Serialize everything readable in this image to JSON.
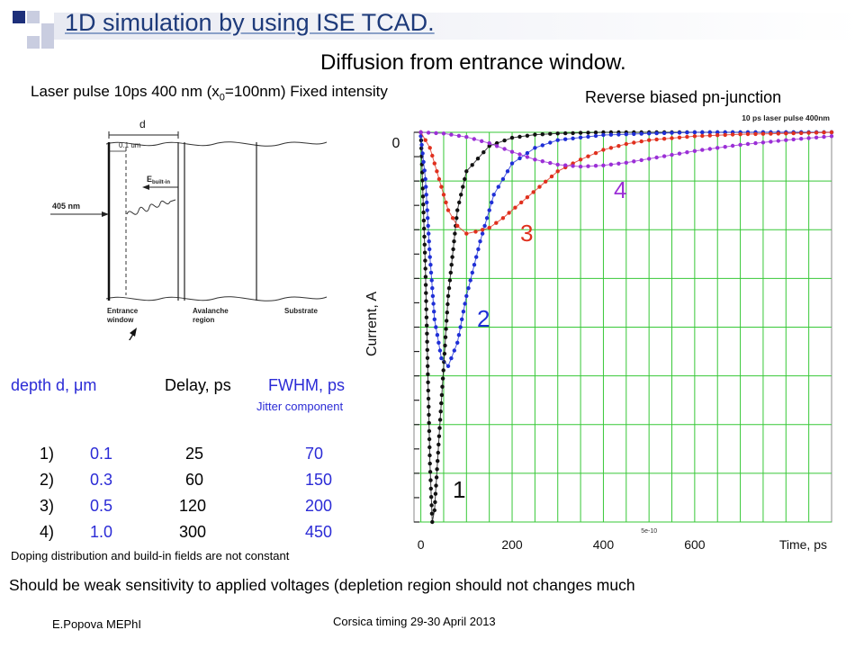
{
  "slide": {
    "title": "1D simulation by using ISE TCAD.",
    "subtitle": "Diffusion from entrance window.",
    "laser_note_pre": "Laser pulse 10ps 400 nm (x",
    "laser_note_sub": "0",
    "laser_note_post": "=100nm) Fixed intensity",
    "bias_note": "Reverse biased pn-junction",
    "doping_note": "Doping distribution and build-in fields are not constant",
    "sensitivity_note": "Should be weak sensitivity to applied voltages (depletion region should not changes much",
    "author": "E.Popova MEPhI",
    "event": "Corsica timing 29-30 April 2013"
  },
  "diagram": {
    "d_label": "d",
    "depth_label": "0.1 um",
    "field_label": "E",
    "field_sub": "built-in",
    "wavelength_label": "405 nm",
    "entrance_label_1": "Entrance",
    "entrance_label_2": "window",
    "avalanche_label_1": "Avalanche",
    "avalanche_label_2": "region",
    "substrate_label": "Substrate"
  },
  "table": {
    "headers": {
      "depth": "depth d, μm",
      "delay": "Delay, ps",
      "fwhm": "FWHM, ps",
      "fwhm_note": "Jitter component"
    },
    "rows": [
      {
        "index": "1)",
        "depth": "0.1",
        "delay": "25",
        "fwhm": "70"
      },
      {
        "index": "2)",
        "depth": "0.3",
        "delay": "60",
        "fwhm": "150"
      },
      {
        "index": "3)",
        "depth": "0.5",
        "delay": "120",
        "fwhm": "200"
      },
      {
        "index": "4)",
        "depth": "1.0",
        "delay": "300",
        "fwhm": "450"
      }
    ]
  },
  "chart_data": {
    "type": "line",
    "title": "10 ps laser pulse 400nm",
    "xlabel": "Time, ps",
    "ylabel": "Current, A",
    "x_ticks": [
      "0",
      "200",
      "400",
      "600"
    ],
    "x_extra_tick": "5e-10",
    "y_ticks": [
      "0"
    ],
    "xlim": [
      -15,
      900
    ],
    "ylim": [
      -1.0,
      0.0
    ],
    "grid": true,
    "series": [
      {
        "name": "1",
        "color": "#111111",
        "x": [
          0,
          10,
          20,
          25,
          30,
          40,
          60,
          80,
          100,
          150,
          200,
          250,
          300,
          400,
          500,
          600,
          700,
          800,
          900
        ],
        "y": [
          0,
          -0.35,
          -0.85,
          -1.0,
          -0.97,
          -0.78,
          -0.42,
          -0.2,
          -0.1,
          -0.035,
          -0.014,
          -0.006,
          -0.003,
          0,
          0,
          0,
          0,
          0,
          0
        ]
      },
      {
        "name": "2",
        "color": "#1f2fd6",
        "x": [
          0,
          10,
          20,
          30,
          45,
          60,
          80,
          100,
          130,
          160,
          200,
          250,
          300,
          400,
          500,
          600,
          700,
          800,
          900
        ],
        "y": [
          -0.01,
          -0.12,
          -0.32,
          -0.48,
          -0.58,
          -0.6,
          -0.54,
          -0.42,
          -0.28,
          -0.16,
          -0.08,
          -0.04,
          -0.02,
          -0.007,
          -0.003,
          0,
          0,
          0,
          0
        ]
      },
      {
        "name": "3",
        "color": "#e0301e",
        "x": [
          0,
          20,
          40,
          60,
          80,
          100,
          120,
          150,
          180,
          220,
          260,
          300,
          350,
          400,
          450,
          500,
          600,
          700,
          800,
          900
        ],
        "y": [
          0,
          -0.04,
          -0.12,
          -0.2,
          -0.24,
          -0.26,
          -0.255,
          -0.245,
          -0.22,
          -0.18,
          -0.14,
          -0.1,
          -0.07,
          -0.045,
          -0.03,
          -0.02,
          -0.01,
          -0.005,
          -0.003,
          0
        ]
      },
      {
        "name": "4",
        "color": "#9b2fd6",
        "x": [
          0,
          50,
          100,
          150,
          200,
          250,
          300,
          350,
          400,
          450,
          500,
          550,
          600,
          650,
          700,
          800,
          900
        ],
        "y": [
          0,
          -0.003,
          -0.012,
          -0.028,
          -0.05,
          -0.07,
          -0.083,
          -0.088,
          -0.085,
          -0.078,
          -0.068,
          -0.058,
          -0.048,
          -0.04,
          -0.032,
          -0.02,
          -0.01
        ]
      }
    ]
  }
}
